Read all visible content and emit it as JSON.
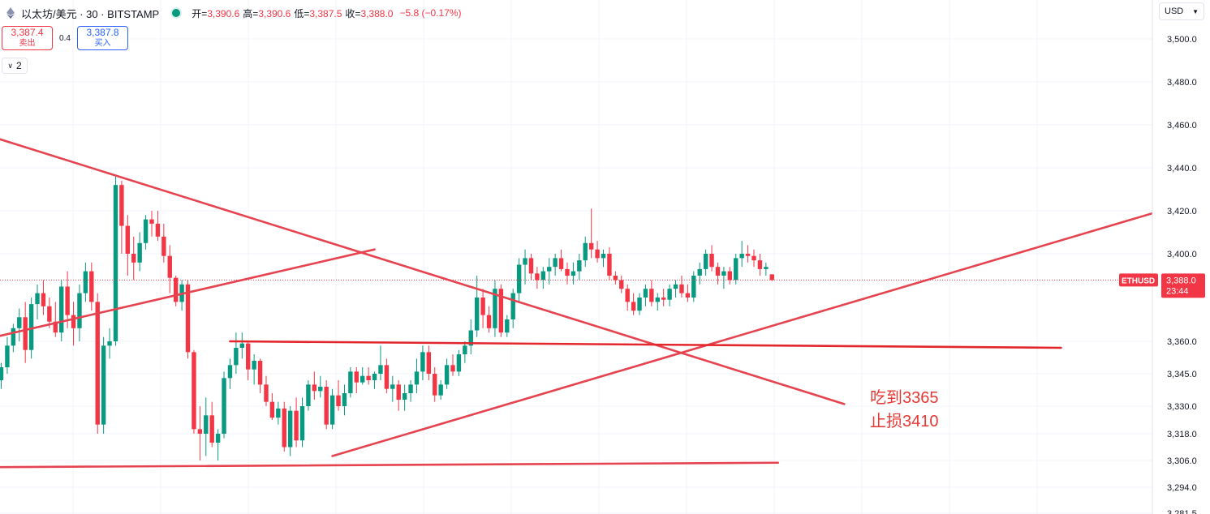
{
  "header": {
    "symbol": "以太坊/美元 · 30 · BITSTAMP",
    "open_label": "开=",
    "open_value": "3,390.6",
    "high_label": "高=",
    "high_value": "3,390.6",
    "low_label": "低=",
    "low_value": "3,387.5",
    "close_label": "收=",
    "close_value": "3,388.0",
    "change": "−5.8 (−0.17%)"
  },
  "trade": {
    "sell_price": "3,387.4",
    "sell_label": "卖出",
    "spread": "0.4",
    "buy_price": "3,387.8",
    "buy_label": "买入"
  },
  "indicators_count": "2",
  "currency": "USD",
  "colors": {
    "up": "#089981",
    "down": "#f23645",
    "trendline": "#e5434f",
    "support": "#e3262c",
    "note": "#e53935"
  },
  "annotations": [
    "吃到3365",
    "止损3410"
  ],
  "chart_data": {
    "type": "candlestick",
    "symbol": "ETHUSD",
    "interval": "30",
    "y_ticks": [
      3500,
      3480,
      3460,
      3440,
      3420,
      3400,
      3388,
      3360,
      3345,
      3330,
      3318,
      3306,
      3294,
      3281.5
    ],
    "y_tick_labels": [
      "3,500.0",
      "3,480.0",
      "3,460.0",
      "3,440.0",
      "3,420.0",
      "3,400.0",
      "3,388.0",
      "3,360.0",
      "3,345.0",
      "3,330.0",
      "3,318.0",
      "3,306.0",
      "3,294.0",
      "3,281.5"
    ],
    "last_price_label": "3,388.0",
    "countdown": "23:44",
    "price_tag_symbol": "ETHUSD",
    "last_price": 3388.0,
    "candles": [
      [
        3342,
        3350,
        3338,
        3348
      ],
      [
        3348,
        3362,
        3345,
        3358
      ],
      [
        3358,
        3368,
        3355,
        3366
      ],
      [
        3366,
        3375,
        3360,
        3371
      ],
      [
        3371,
        3378,
        3350,
        3356
      ],
      [
        3356,
        3380,
        3352,
        3377
      ],
      [
        3377,
        3386,
        3370,
        3382
      ],
      [
        3382,
        3388,
        3372,
        3376
      ],
      [
        3376,
        3380,
        3366,
        3369
      ],
      [
        3369,
        3378,
        3362,
        3364
      ],
      [
        3364,
        3388,
        3360,
        3385
      ],
      [
        3385,
        3392,
        3366,
        3372
      ],
      [
        3372,
        3378,
        3358,
        3366
      ],
      [
        3366,
        3386,
        3360,
        3382
      ],
      [
        3382,
        3396,
        3378,
        3392
      ],
      [
        3392,
        3396,
        3374,
        3378
      ],
      [
        3378,
        3382,
        3318,
        3322
      ],
      [
        3322,
        3362,
        3318,
        3358
      ],
      [
        3358,
        3366,
        3352,
        3360
      ],
      [
        3360,
        3436,
        3358,
        3432
      ],
      [
        3432,
        3434,
        3400,
        3413
      ],
      [
        3413,
        3418,
        3390,
        3400
      ],
      [
        3400,
        3408,
        3388,
        3396
      ],
      [
        3396,
        3410,
        3392,
        3405
      ],
      [
        3405,
        3418,
        3402,
        3416
      ],
      [
        3416,
        3420,
        3408,
        3414
      ],
      [
        3414,
        3420,
        3406,
        3408
      ],
      [
        3408,
        3414,
        3396,
        3399
      ],
      [
        3399,
        3404,
        3382,
        3389
      ],
      [
        3389,
        3390,
        3376,
        3378
      ],
      [
        3378,
        3388,
        3374,
        3386
      ],
      [
        3386,
        3388,
        3352,
        3355
      ],
      [
        3355,
        3356,
        3318,
        3320
      ],
      [
        3320,
        3330,
        3306,
        3318
      ],
      [
        3318,
        3334,
        3308,
        3326
      ],
      [
        3326,
        3332,
        3312,
        3314
      ],
      [
        3314,
        3320,
        3306,
        3318
      ],
      [
        3318,
        3346,
        3316,
        3343
      ],
      [
        3343,
        3352,
        3338,
        3349
      ],
      [
        3349,
        3364,
        3345,
        3357
      ],
      [
        3357,
        3364,
        3352,
        3359
      ],
      [
        3359,
        3360,
        3342,
        3347
      ],
      [
        3347,
        3354,
        3340,
        3351
      ],
      [
        3351,
        3352,
        3336,
        3340
      ],
      [
        3340,
        3344,
        3330,
        3332
      ],
      [
        3332,
        3336,
        3324,
        3325
      ],
      [
        3325,
        3332,
        3322,
        3329
      ],
      [
        3329,
        3332,
        3310,
        3312
      ],
      [
        3312,
        3330,
        3308,
        3328
      ],
      [
        3328,
        3334,
        3312,
        3315
      ],
      [
        3315,
        3334,
        3312,
        3330
      ],
      [
        3330,
        3342,
        3328,
        3340
      ],
      [
        3340,
        3346,
        3333,
        3337
      ],
      [
        3337,
        3344,
        3334,
        3339
      ],
      [
        3339,
        3342,
        3320,
        3322
      ],
      [
        3322,
        3338,
        3320,
        3335
      ],
      [
        3335,
        3342,
        3328,
        3330
      ],
      [
        3330,
        3340,
        3326,
        3336
      ],
      [
        3336,
        3348,
        3334,
        3346
      ],
      [
        3346,
        3348,
        3336,
        3341
      ],
      [
        3341,
        3348,
        3340,
        3344
      ],
      [
        3344,
        3348,
        3340,
        3342
      ],
      [
        3342,
        3346,
        3338,
        3345
      ],
      [
        3345,
        3358,
        3342,
        3349
      ],
      [
        3349,
        3352,
        3336,
        3338
      ],
      [
        3338,
        3344,
        3332,
        3340
      ],
      [
        3340,
        3342,
        3328,
        3333
      ],
      [
        3333,
        3340,
        3328,
        3336
      ],
      [
        3336,
        3342,
        3332,
        3340
      ],
      [
        3340,
        3352,
        3336,
        3346
      ],
      [
        3346,
        3358,
        3342,
        3355
      ],
      [
        3355,
        3358,
        3342,
        3345
      ],
      [
        3345,
        3348,
        3332,
        3335
      ],
      [
        3335,
        3342,
        3333,
        3340
      ],
      [
        3340,
        3352,
        3338,
        3349
      ],
      [
        3349,
        3354,
        3344,
        3346
      ],
      [
        3346,
        3356,
        3344,
        3354
      ],
      [
        3354,
        3360,
        3350,
        3358
      ],
      [
        3358,
        3370,
        3354,
        3365
      ],
      [
        3365,
        3390,
        3362,
        3380
      ],
      [
        3380,
        3384,
        3366,
        3372
      ],
      [
        3372,
        3376,
        3364,
        3366
      ],
      [
        3366,
        3388,
        3362,
        3384
      ],
      [
        3384,
        3386,
        3362,
        3364
      ],
      [
        3364,
        3372,
        3362,
        3370
      ],
      [
        3370,
        3384,
        3366,
        3382
      ],
      [
        3382,
        3398,
        3378,
        3395
      ],
      [
        3395,
        3402,
        3386,
        3398
      ],
      [
        3398,
        3400,
        3388,
        3391
      ],
      [
        3391,
        3394,
        3384,
        3388
      ],
      [
        3388,
        3394,
        3384,
        3392
      ],
      [
        3392,
        3398,
        3386,
        3394
      ],
      [
        3394,
        3400,
        3390,
        3398
      ],
      [
        3398,
        3402,
        3392,
        3393
      ],
      [
        3393,
        3396,
        3386,
        3390
      ],
      [
        3390,
        3396,
        3386,
        3392
      ],
      [
        3392,
        3400,
        3388,
        3397
      ],
      [
        3397,
        3408,
        3394,
        3405
      ],
      [
        3405,
        3421,
        3398,
        3402
      ],
      [
        3402,
        3406,
        3396,
        3398
      ],
      [
        3398,
        3402,
        3394,
        3400
      ],
      [
        3400,
        3403,
        3388,
        3390
      ],
      [
        3390,
        3392,
        3386,
        3388
      ],
      [
        3388,
        3390,
        3382,
        3384
      ],
      [
        3384,
        3386,
        3374,
        3378
      ],
      [
        3378,
        3382,
        3372,
        3374
      ],
      [
        3374,
        3382,
        3372,
        3380
      ],
      [
        3380,
        3386,
        3376,
        3384
      ],
      [
        3384,
        3388,
        3376,
        3378
      ],
      [
        3378,
        3382,
        3374,
        3380
      ],
      [
        3380,
        3384,
        3376,
        3379
      ],
      [
        3379,
        3386,
        3376,
        3384
      ],
      [
        3384,
        3388,
        3380,
        3386
      ],
      [
        3386,
        3390,
        3380,
        3382
      ],
      [
        3382,
        3386,
        3378,
        3380
      ],
      [
        3380,
        3392,
        3378,
        3390
      ],
      [
        3390,
        3396,
        3386,
        3393
      ],
      [
        3393,
        3402,
        3390,
        3400
      ],
      [
        3400,
        3404,
        3392,
        3394
      ],
      [
        3394,
        3396,
        3386,
        3390
      ],
      [
        3390,
        3394,
        3384,
        3392
      ],
      [
        3392,
        3394,
        3386,
        3388
      ],
      [
        3388,
        3400,
        3386,
        3398
      ],
      [
        3398,
        3406,
        3394,
        3400
      ],
      [
        3400,
        3404,
        3396,
        3399
      ],
      [
        3399,
        3402,
        3394,
        3397
      ],
      [
        3397,
        3400,
        3390,
        3393
      ],
      [
        3393,
        3396,
        3390,
        3394
      ],
      [
        3390.6,
        3390.6,
        3387.5,
        3388.0
      ]
    ],
    "trendlines": [
      {
        "name": "descending",
        "from": [
          -1,
          3454
        ],
        "to": [
          140,
          3331
        ]
      },
      {
        "name": "rising-early",
        "from": [
          -1,
          3362
        ],
        "to": [
          62,
          3402
        ]
      },
      {
        "name": "rising-main",
        "from": [
          55,
          3308
        ],
        "to": [
          195,
          3422
        ]
      },
      {
        "name": "support-bottom",
        "from": [
          -1,
          3303
        ],
        "to": [
          129,
          3305
        ]
      },
      {
        "name": "resistance-3357",
        "from": [
          38,
          3360
        ],
        "to": [
          176,
          3357
        ]
      }
    ]
  }
}
